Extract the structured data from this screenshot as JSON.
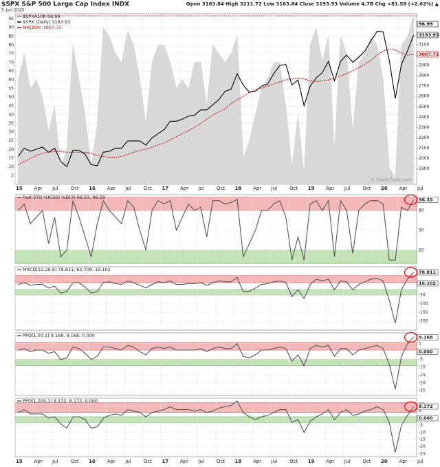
{
  "chart_data": [
    {
      "type": "line",
      "title": "$SPX S&P 500 Large Cap Index INDX",
      "subtitle": "5-Jun-2020",
      "annotations": [
        "Open 3163.84 High 3211.72 Low 3163.84 Close 3193.93 Volume 4.7B Chg +81.58 (+2.62%) ▲",
        "© StockCharts.com"
      ],
      "x": [
        "2015-01",
        "2015-02",
        "2015-03",
        "2015-04",
        "2015-05",
        "2015-06",
        "2015-07",
        "2015-08",
        "2015-09",
        "2015-10",
        "2015-11",
        "2015-12",
        "2016-01",
        "2016-02",
        "2016-03",
        "2016-04",
        "2016-05",
        "2016-06",
        "2016-07",
        "2016-08",
        "2016-09",
        "2016-10",
        "2016-11",
        "2016-12",
        "2017-01",
        "2017-02",
        "2017-03",
        "2017-04",
        "2017-05",
        "2017-06",
        "2017-07",
        "2017-08",
        "2017-09",
        "2017-10",
        "2017-11",
        "2017-12",
        "2018-01",
        "2018-02",
        "2018-03",
        "2018-04",
        "2018-05",
        "2018-06",
        "2018-07",
        "2018-08",
        "2018-09",
        "2018-10",
        "2018-11",
        "2018-12",
        "2019-01",
        "2019-02",
        "2019-03",
        "2019-04",
        "2019-05",
        "2019-06",
        "2019-07",
        "2019-08",
        "2019-09",
        "2019-10",
        "2019-11",
        "2019-12",
        "2020-01",
        "2020-02",
        "2020-03",
        "2020-04",
        "2020-05",
        "2020-06"
      ],
      "xtick_labels": [
        "15",
        "Apr",
        "Jul",
        "Oct",
        "16",
        "Apr",
        "Jul",
        "Oct",
        "17",
        "Apr",
        "Jul",
        "Oct",
        "18",
        "Apr",
        "Jul",
        "Oct",
        "19",
        "Apr",
        "Jul",
        "Oct",
        "20",
        "Apr",
        "Jul"
      ],
      "series": [
        {
          "name": "$SPXA50R 96.99",
          "type": "area",
          "color": "#d8d8d8",
          "axis": "y",
          "values": [
            60,
            75,
            55,
            60,
            50,
            30,
            45,
            10,
            20,
            80,
            60,
            40,
            10,
            35,
            90,
            85,
            75,
            70,
            88,
            80,
            60,
            35,
            70,
            80,
            80,
            70,
            55,
            60,
            55,
            70,
            70,
            45,
            80,
            75,
            70,
            75,
            85,
            15,
            25,
            40,
            55,
            60,
            70,
            70,
            45,
            10,
            40,
            5,
            80,
            90,
            70,
            85,
            20,
            85,
            75,
            30,
            70,
            75,
            85,
            80,
            60,
            10,
            3,
            80,
            85,
            97
          ]
        },
        {
          "name": "$SPX (Daily) 3193.93",
          "type": "line",
          "color": "#000000",
          "axis": "y2",
          "values": [
            2020,
            2100,
            2070,
            2090,
            2110,
            2060,
            2100,
            1970,
            1920,
            2080,
            2080,
            2040,
            1940,
            1930,
            2060,
            2070,
            2100,
            2100,
            2170,
            2170,
            2170,
            2130,
            2200,
            2240,
            2280,
            2360,
            2360,
            2380,
            2410,
            2420,
            2470,
            2470,
            2520,
            2570,
            2650,
            2670,
            2820,
            2710,
            2640,
            2650,
            2700,
            2720,
            2820,
            2900,
            2910,
            2710,
            2760,
            2510,
            2700,
            2780,
            2830,
            2940,
            2750,
            2940,
            3000,
            2930,
            2980,
            3040,
            3140,
            3230,
            3225,
            2950,
            2580,
            2910,
            3040,
            3194
          ]
        },
        {
          "name": "MA(200) 3007.72",
          "type": "line",
          "dash": true,
          "color": "#cc0000",
          "axis": "y2",
          "values": [
            1940,
            1970,
            2000,
            2030,
            2050,
            2060,
            2070,
            2070,
            2060,
            2060,
            2060,
            2060,
            2050,
            2030,
            2020,
            2010,
            2010,
            2020,
            2040,
            2060,
            2080,
            2090,
            2110,
            2130,
            2150,
            2180,
            2210,
            2240,
            2270,
            2300,
            2340,
            2380,
            2420,
            2450,
            2480,
            2530,
            2570,
            2600,
            2640,
            2660,
            2680,
            2700,
            2720,
            2740,
            2760,
            2770,
            2775,
            2770,
            2750,
            2745,
            2750,
            2760,
            2780,
            2800,
            2820,
            2850,
            2880,
            2910,
            2950,
            3000,
            3040,
            3060,
            3050,
            3020,
            3000,
            3008
          ]
        }
      ],
      "ylim": [
        0,
        98
      ],
      "yticks": [
        5,
        10,
        15,
        20,
        25,
        30,
        35,
        40,
        45,
        50,
        55,
        60,
        65,
        70,
        75,
        80,
        85,
        90,
        95
      ],
      "tick_side": "left",
      "y2lim": [
        1750,
        3400
      ],
      "y2ticks": [
        1900,
        2000,
        2100,
        2200,
        2300,
        2400,
        2500,
        2600,
        2700,
        2800,
        2900,
        3000,
        3100,
        3200,
        3300
      ],
      "grid": true,
      "tags": [
        {
          "value": 3300,
          "label": "96.99",
          "axis": "y2",
          "color": "#000000"
        },
        {
          "value": 3193.93,
          "axis": "y2",
          "color": "#000000"
        },
        {
          "value": 3007.72,
          "axis": "y2",
          "color": "#cc0000"
        }
      ],
      "reference_line": {
        "value": 3380,
        "axis": "y2",
        "color": "#cc0000"
      }
    },
    {
      "type": "line",
      "series": [
        {
          "name": "Fast STO %K(35) %D(3) 96.33, 96.58",
          "type": "line",
          "color": "#555555",
          "values": [
            80,
            90,
            60,
            70,
            80,
            30,
            70,
            10,
            20,
            95,
            70,
            40,
            10,
            60,
            95,
            80,
            70,
            60,
            95,
            85,
            50,
            20,
            80,
            95,
            90,
            95,
            50,
            70,
            90,
            80,
            85,
            40,
            95,
            95,
            90,
            92,
            97,
            10,
            30,
            50,
            80,
            80,
            90,
            95,
            70,
            5,
            40,
            5,
            90,
            95,
            80,
            95,
            10,
            95,
            80,
            15,
            80,
            90,
            95,
            95,
            90,
            5,
            5,
            85,
            80,
            96.33
          ]
        }
      ],
      "ylim": [
        0,
        104
      ],
      "yticks": [
        20,
        50,
        80
      ],
      "tick_side": "right",
      "grid": true,
      "bands": [
        {
          "from": 80,
          "to": 100,
          "color": "#f4b8b8"
        },
        {
          "from": 0,
          "to": 20,
          "color": "#c5e3b8"
        }
      ],
      "tags": [
        {
          "value": 96.33
        }
      ]
    },
    {
      "type": "line",
      "series": [
        {
          "name": "MACD(12,26,9) 78.811, 62.709, 16.102",
          "type": "line",
          "color": "#555555",
          "values": [
            10,
            20,
            5,
            10,
            10,
            -10,
            0,
            -40,
            -30,
            20,
            20,
            -5,
            -40,
            -30,
            20,
            25,
            15,
            10,
            30,
            20,
            5,
            -10,
            10,
            25,
            20,
            30,
            10,
            10,
            15,
            15,
            20,
            5,
            20,
            30,
            25,
            25,
            50,
            -30,
            -30,
            -10,
            10,
            15,
            25,
            30,
            20,
            -60,
            -20,
            -70,
            10,
            40,
            30,
            40,
            -20,
            30,
            25,
            -20,
            10,
            25,
            40,
            45,
            30,
            -80,
            -210,
            -20,
            40,
            78.811
          ]
        }
      ],
      "ylim": [
        -250,
        110
      ],
      "yticks": [
        -50,
        -100,
        -150,
        -200
      ],
      "tick_side": "right",
      "grid": true,
      "bands": [
        {
          "from": 20,
          "to": 60,
          "color": "#f4b8b8"
        },
        {
          "from": -50,
          "to": -20,
          "color": "#c5e3b8"
        }
      ],
      "tags": [
        {
          "value": 78.811
        },
        {
          "value": 16.102
        }
      ]
    },
    {
      "type": "line",
      "series": [
        {
          "name": "PPO(1,50,1) 9.168, 9.168, 0.000",
          "type": "line",
          "color": "#555555",
          "values": [
            1,
            2,
            0,
            1,
            1,
            -1,
            0,
            -5,
            -4,
            3,
            2,
            -1,
            -5,
            -3,
            3,
            3,
            2,
            1,
            4,
            3,
            0,
            -2,
            2,
            3,
            2,
            3,
            1,
            1,
            1,
            1,
            2,
            0,
            2,
            3,
            2,
            2,
            5,
            -3,
            -4,
            -2,
            1,
            1,
            2,
            3,
            2,
            -6,
            -2,
            -9,
            2,
            4,
            3,
            4,
            -3,
            2,
            2,
            -2,
            1,
            2,
            3,
            4,
            2,
            -8,
            -24,
            -3,
            5,
            9.168
          ]
        }
      ],
      "ylim": [
        -28,
        12
      ],
      "yticks": [
        5,
        -5,
        -10,
        -15,
        -20,
        -25
      ],
      "tick_side": "right",
      "grid": true,
      "bands": [
        {
          "from": 1,
          "to": 6,
          "color": "#f4b8b8"
        },
        {
          "from": -9,
          "to": -5,
          "color": "#c5e3b8"
        }
      ],
      "tags": [
        {
          "value": 9.168
        },
        {
          "value": 0,
          "label": "0.000"
        }
      ]
    },
    {
      "type": "line",
      "series": [
        {
          "name": "PPO(1,200,1) 8.172, 8.172, 0.000",
          "type": "line",
          "color": "#555555",
          "values": [
            4,
            6,
            3,
            3,
            3,
            0,
            1,
            -4,
            -7,
            1,
            1,
            -1,
            -7,
            -6,
            0,
            2,
            3,
            2,
            6,
            5,
            4,
            1,
            4,
            5,
            6,
            8,
            6,
            6,
            6,
            5,
            6,
            4,
            5,
            7,
            8,
            9,
            12,
            4,
            1,
            -1,
            1,
            2,
            4,
            6,
            6,
            -3,
            -1,
            -10,
            -2,
            1,
            3,
            6,
            -1,
            4,
            6,
            2,
            3,
            5,
            6,
            8,
            6,
            -3,
            -24,
            -5,
            2,
            8.172
          ]
        }
      ],
      "ylim": [
        -27,
        14
      ],
      "yticks": [
        10,
        5,
        -5,
        -10,
        -15,
        -20,
        -25
      ],
      "tick_side": "right",
      "grid": true,
      "bands": [
        {
          "from": 4,
          "to": 11,
          "color": "#f4b8b8"
        },
        {
          "from": -3,
          "to": 1,
          "color": "#c5e3b8"
        }
      ],
      "tags": [
        {
          "value": 8.172
        },
        {
          "value": 0,
          "label": "0.000"
        }
      ]
    }
  ]
}
